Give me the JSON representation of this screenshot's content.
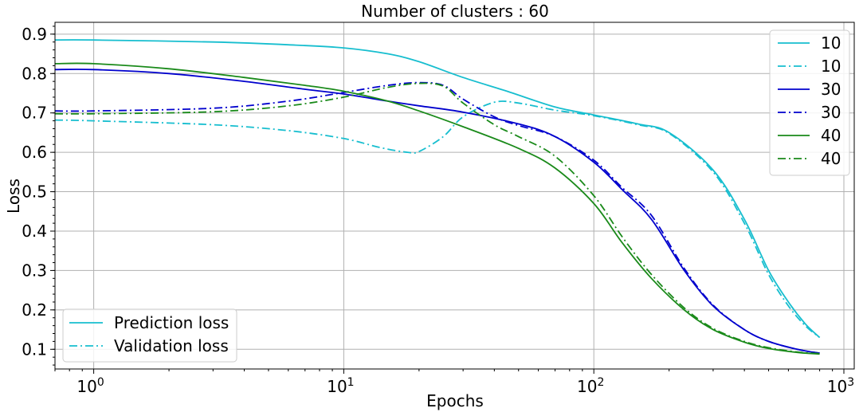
{
  "chart_data": {
    "type": "line",
    "title": "Number of clusters : 60",
    "xlabel": "Epochs",
    "ylabel": "Loss",
    "xscale": "log",
    "xlim": [
      0.7,
      1100
    ],
    "ylim": [
      0.05,
      0.93
    ],
    "grid": true,
    "x_ticks": [
      {
        "value": 1,
        "base": "10",
        "exp": "0"
      },
      {
        "value": 10,
        "base": "10",
        "exp": "1"
      },
      {
        "value": 100,
        "base": "10",
        "exp": "2"
      },
      {
        "value": 1000,
        "base": "10",
        "exp": "3"
      }
    ],
    "y_ticks": [
      "0.1",
      "0.2",
      "0.3",
      "0.4",
      "0.5",
      "0.6",
      "0.7",
      "0.8",
      "0.9"
    ],
    "series": [
      {
        "name": "10",
        "color": "#17becf",
        "style": "solid",
        "x": [
          0.7,
          1,
          3,
          6,
          10,
          15,
          20,
          30,
          45,
          70,
          100,
          150,
          200,
          300,
          400,
          500,
          600,
          700,
          800
        ],
        "y": [
          0.885,
          0.885,
          0.88,
          0.873,
          0.865,
          0.85,
          0.83,
          0.79,
          0.755,
          0.715,
          0.695,
          0.672,
          0.65,
          0.555,
          0.43,
          0.3,
          0.22,
          0.165,
          0.13
        ]
      },
      {
        "name": "10",
        "color": "#17becf",
        "style": "dashdot",
        "x": [
          0.7,
          1,
          3,
          6,
          10,
          14,
          18,
          20,
          25,
          30,
          40,
          50,
          70,
          100,
          150,
          200,
          300,
          400,
          500,
          600,
          700,
          800
        ],
        "y": [
          0.682,
          0.68,
          0.67,
          0.655,
          0.635,
          0.612,
          0.6,
          0.602,
          0.64,
          0.69,
          0.727,
          0.725,
          0.707,
          0.693,
          0.67,
          0.648,
          0.55,
          0.42,
          0.29,
          0.21,
          0.16,
          0.13
        ]
      },
      {
        "name": "30",
        "color": "#0000cd",
        "style": "solid",
        "x": [
          0.7,
          1,
          2,
          4,
          7,
          10,
          15,
          20,
          30,
          50,
          70,
          100,
          130,
          170,
          230,
          300,
          400,
          500,
          650,
          800
        ],
        "y": [
          0.81,
          0.81,
          0.8,
          0.78,
          0.76,
          0.748,
          0.73,
          0.718,
          0.702,
          0.672,
          0.64,
          0.575,
          0.505,
          0.43,
          0.3,
          0.21,
          0.15,
          0.12,
          0.1,
          0.09
        ]
      },
      {
        "name": "30",
        "color": "#0000cd",
        "style": "dashdot",
        "x": [
          0.7,
          1,
          3,
          6,
          10,
          15,
          20,
          25,
          30,
          40,
          50,
          70,
          100,
          130,
          170,
          230,
          300,
          400,
          500,
          650,
          800
        ],
        "y": [
          0.705,
          0.705,
          0.712,
          0.73,
          0.752,
          0.77,
          0.777,
          0.77,
          0.735,
          0.69,
          0.668,
          0.64,
          0.58,
          0.51,
          0.44,
          0.305,
          0.212,
          0.15,
          0.12,
          0.1,
          0.09
        ]
      },
      {
        "name": "40",
        "color": "#1a8a1a",
        "style": "solid",
        "x": [
          0.7,
          1,
          2,
          4,
          7,
          10,
          15,
          20,
          30,
          50,
          70,
          100,
          130,
          170,
          230,
          300,
          400,
          500,
          650,
          800
        ],
        "y": [
          0.825,
          0.825,
          0.812,
          0.79,
          0.77,
          0.755,
          0.73,
          0.705,
          0.665,
          0.61,
          0.56,
          0.47,
          0.37,
          0.28,
          0.2,
          0.15,
          0.118,
          0.102,
          0.092,
          0.088
        ]
      },
      {
        "name": "40",
        "color": "#1a8a1a",
        "style": "dashdot",
        "x": [
          0.7,
          1,
          3,
          6,
          10,
          15,
          20,
          25,
          30,
          40,
          50,
          70,
          100,
          130,
          170,
          230,
          300,
          400,
          500,
          650,
          800
        ],
        "y": [
          0.698,
          0.698,
          0.703,
          0.718,
          0.74,
          0.765,
          0.775,
          0.768,
          0.725,
          0.67,
          0.64,
          0.59,
          0.49,
          0.385,
          0.29,
          0.205,
          0.153,
          0.12,
          0.104,
          0.093,
          0.089
        ]
      }
    ],
    "legend_series": {
      "position": "top-right",
      "entries": [
        "10",
        "10",
        "30",
        "30",
        "40",
        "40"
      ]
    },
    "legend_style": {
      "position": "bottom-left",
      "entries": [
        {
          "label": "Prediction loss",
          "style": "solid",
          "color": "#17becf"
        },
        {
          "label": "Validation loss",
          "style": "dashdot",
          "color": "#17becf"
        }
      ]
    }
  }
}
